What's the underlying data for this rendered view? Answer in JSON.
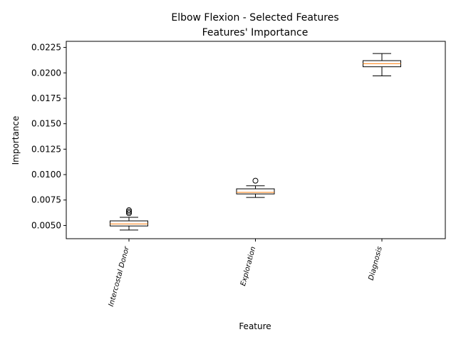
{
  "chart_data": {
    "type": "box",
    "title": "Elbow Flexion - Selected Features",
    "subtitle": "Features' Importance",
    "xlabel": "Feature",
    "ylabel": "Importance",
    "ylim": [
      0.0037,
      0.0231
    ],
    "yticks": [
      "0.0050",
      "0.0075",
      "0.0100",
      "0.0125",
      "0.0150",
      "0.0175",
      "0.0200",
      "0.0225"
    ],
    "grid": false,
    "colors": {
      "box": "#000000",
      "median": "#ff7f0e",
      "flier": "#000000"
    },
    "categories": [
      "Intercostal Donor",
      "Exploration",
      "Diagnosis"
    ],
    "boxes": [
      {
        "whislo": 0.00455,
        "q1": 0.00495,
        "med": 0.00515,
        "q3": 0.00545,
        "whishi": 0.0058,
        "fliers": [
          0.0062,
          0.00635,
          0.0065
        ]
      },
      {
        "whislo": 0.00775,
        "q1": 0.0081,
        "med": 0.00825,
        "q3": 0.0086,
        "whishi": 0.0089,
        "fliers": [
          0.0094
        ]
      },
      {
        "whislo": 0.0197,
        "q1": 0.0206,
        "med": 0.0209,
        "q3": 0.0212,
        "whishi": 0.0219,
        "fliers": []
      }
    ]
  }
}
